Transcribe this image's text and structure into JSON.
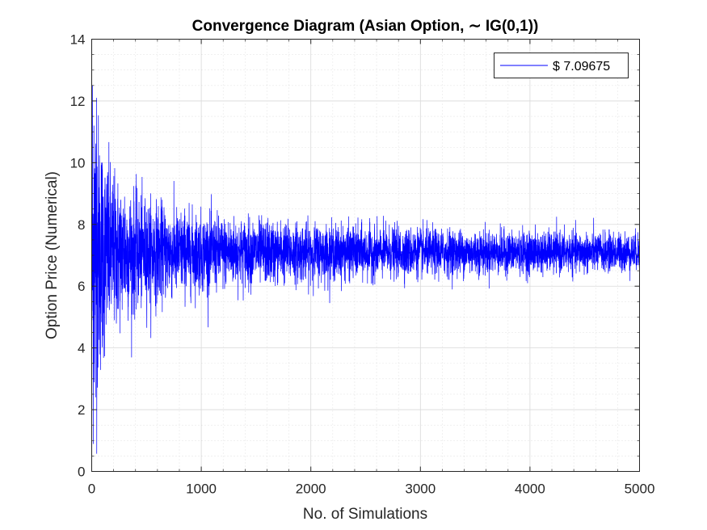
{
  "chart_data": {
    "type": "line",
    "title": "Convergence Diagram (Asian Option, ∼ IG(0,1))",
    "xlabel": "No. of Simulations",
    "ylabel": "Option Price (Numerical)",
    "xlim": [
      0,
      5000
    ],
    "ylim": [
      0,
      14
    ],
    "x_ticks": [
      0,
      1000,
      2000,
      3000,
      4000,
      5000
    ],
    "x_tick_labels": [
      "0",
      "1000",
      "2000",
      "3000",
      "4000",
      "5000"
    ],
    "y_ticks": [
      0,
      2,
      4,
      6,
      8,
      10,
      12,
      14
    ],
    "y_tick_labels": [
      "0",
      "2",
      "4",
      "6",
      "8",
      "10",
      "12",
      "14"
    ],
    "grid": true,
    "minor_grid": true,
    "legend_position": "top-right",
    "series": [
      {
        "name": "$ 7.09675",
        "color": "#0000ff",
        "n_points": 5000,
        "converged_value": 7.09675,
        "key_points": [
          [
            1,
            0.1
          ],
          [
            3,
            5.2
          ],
          [
            6,
            12.5
          ],
          [
            12,
            4.9
          ],
          [
            20,
            11.2
          ],
          [
            30,
            6.1
          ],
          [
            35,
            2.4
          ],
          [
            45,
            12.1
          ],
          [
            60,
            6.4
          ],
          [
            90,
            10.0
          ],
          [
            130,
            6.0
          ],
          [
            200,
            9.0
          ],
          [
            300,
            8.9
          ],
          [
            500,
            8.4
          ],
          [
            800,
            7.8
          ],
          [
            1200,
            7.5
          ],
          [
            2000,
            7.6
          ],
          [
            3000,
            7.6
          ],
          [
            4000,
            7.5
          ],
          [
            5000,
            7.1
          ]
        ],
        "envelope_amplitude_at_1000": 0.62,
        "envelope_amplitude_at_5000": 0.3
      }
    ]
  }
}
